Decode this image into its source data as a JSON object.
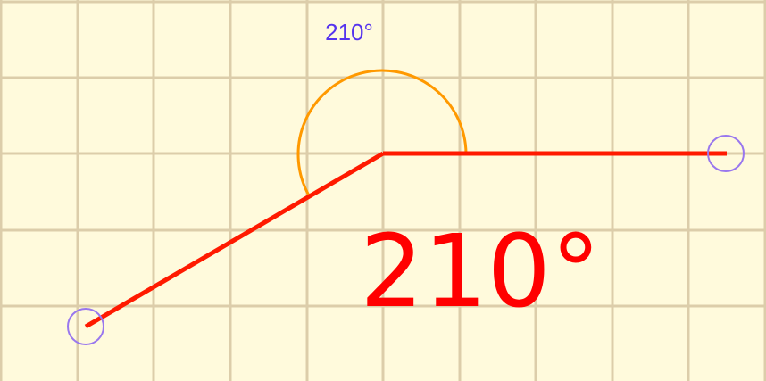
{
  "diagram": {
    "type": "angle-tool",
    "angle_degrees": 210,
    "arc_label": "210°",
    "big_label": "210°",
    "colors": {
      "background": "#fffadc",
      "grid": "#dccdaa",
      "arm": "#ff1a00",
      "arc": "#ff9900",
      "handle": "#9977ee",
      "arc_label": "#5533ee",
      "big_label": "#ff0000"
    }
  }
}
